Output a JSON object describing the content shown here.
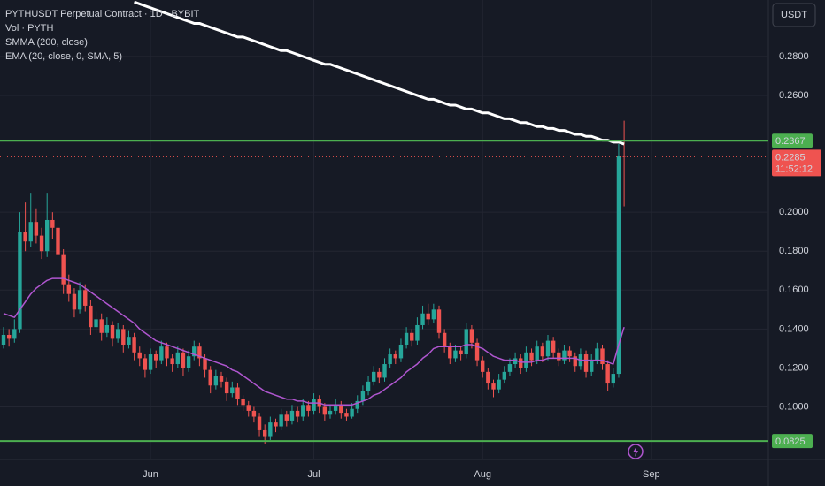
{
  "chart_data": {
    "type": "candlestick",
    "title": "PYTHUSDT Perpetual Contract · 1D · BYBIT",
    "volume_label": "Vol · PYTH",
    "currency": "USDT",
    "up_color": "#26a69a",
    "down_color": "#ef5350",
    "grid": true,
    "ylim": [
      0.073,
      0.309
    ],
    "yticks": [
      {
        "value": 0.28,
        "label": "0.2800"
      },
      {
        "value": 0.26,
        "label": "0.2600"
      },
      {
        "value": 0.2,
        "label": "0.2000"
      },
      {
        "value": 0.18,
        "label": "0.1800"
      },
      {
        "value": 0.16,
        "label": "0.1600"
      },
      {
        "value": 0.14,
        "label": "0.1400"
      },
      {
        "value": 0.12,
        "label": "0.1200"
      },
      {
        "value": 0.1,
        "label": "0.1000"
      }
    ],
    "categories": [
      null,
      null,
      null,
      null,
      null,
      null,
      null,
      null,
      null,
      null,
      null,
      null,
      null,
      null,
      null,
      null,
      null,
      null,
      null,
      null,
      null,
      null,
      null,
      null,
      null,
      null,
      null,
      "Jun",
      null,
      null,
      null,
      null,
      null,
      null,
      null,
      null,
      null,
      null,
      null,
      null,
      null,
      null,
      null,
      null,
      null,
      null,
      null,
      null,
      null,
      null,
      null,
      null,
      null,
      null,
      null,
      null,
      null,
      "Jul",
      null,
      null,
      null,
      null,
      null,
      null,
      null,
      null,
      null,
      null,
      null,
      null,
      null,
      null,
      null,
      null,
      null,
      null,
      null,
      null,
      null,
      null,
      null,
      null,
      null,
      null,
      null,
      null,
      null,
      null,
      "Aug",
      null,
      null,
      null,
      null,
      null,
      null,
      null,
      null,
      null,
      null,
      null,
      null,
      null,
      null,
      null,
      null,
      null,
      null,
      null,
      null,
      null,
      null,
      null,
      null,
      null,
      null,
      null,
      null,
      null,
      null,
      "Sep"
    ],
    "candles": [
      [
        0.132,
        0.141,
        0.13,
        0.137
      ],
      [
        0.137,
        0.14,
        0.131,
        0.135
      ],
      [
        0.135,
        0.145,
        0.133,
        0.14
      ],
      [
        0.14,
        0.2,
        0.138,
        0.19
      ],
      [
        0.19,
        0.205,
        0.18,
        0.185
      ],
      [
        0.185,
        0.21,
        0.182,
        0.195
      ],
      [
        0.195,
        0.202,
        0.184,
        0.188
      ],
      [
        0.188,
        0.192,
        0.176,
        0.18
      ],
      [
        0.18,
        0.21,
        0.177,
        0.196
      ],
      [
        0.196,
        0.2,
        0.186,
        0.192
      ],
      [
        0.192,
        0.196,
        0.174,
        0.178
      ],
      [
        0.178,
        0.181,
        0.158,
        0.163
      ],
      [
        0.163,
        0.168,
        0.154,
        0.158
      ],
      [
        0.158,
        0.161,
        0.146,
        0.15
      ],
      [
        0.15,
        0.164,
        0.148,
        0.16
      ],
      [
        0.16,
        0.163,
        0.149,
        0.152
      ],
      [
        0.152,
        0.155,
        0.137,
        0.141
      ],
      [
        0.141,
        0.149,
        0.138,
        0.145
      ],
      [
        0.145,
        0.148,
        0.134,
        0.138
      ],
      [
        0.138,
        0.146,
        0.136,
        0.142
      ],
      [
        0.142,
        0.144,
        0.131,
        0.135
      ],
      [
        0.135,
        0.143,
        0.133,
        0.14
      ],
      [
        0.14,
        0.142,
        0.128,
        0.132
      ],
      [
        0.132,
        0.139,
        0.13,
        0.136
      ],
      [
        0.136,
        0.138,
        0.124,
        0.128
      ],
      [
        0.128,
        0.131,
        0.121,
        0.125
      ],
      [
        0.125,
        0.127,
        0.115,
        0.119
      ],
      [
        0.119,
        0.13,
        0.117,
        0.127
      ],
      [
        0.127,
        0.129,
        0.12,
        0.124
      ],
      [
        0.124,
        0.134,
        0.122,
        0.131
      ],
      [
        0.131,
        0.133,
        0.121,
        0.125
      ],
      [
        0.125,
        0.127,
        0.118,
        0.122
      ],
      [
        0.122,
        0.131,
        0.12,
        0.128
      ],
      [
        0.128,
        0.13,
        0.116,
        0.12
      ],
      [
        0.12,
        0.129,
        0.118,
        0.126
      ],
      [
        0.126,
        0.134,
        0.124,
        0.131
      ],
      [
        0.131,
        0.133,
        0.121,
        0.125
      ],
      [
        0.125,
        0.127,
        0.115,
        0.119
      ],
      [
        0.119,
        0.121,
        0.107,
        0.111
      ],
      [
        0.111,
        0.119,
        0.109,
        0.116
      ],
      [
        0.116,
        0.118,
        0.11,
        0.113
      ],
      [
        0.113,
        0.115,
        0.103,
        0.107
      ],
      [
        0.107,
        0.113,
        0.105,
        0.11
      ],
      [
        0.11,
        0.112,
        0.101,
        0.104
      ],
      [
        0.104,
        0.106,
        0.098,
        0.101
      ],
      [
        0.101,
        0.103,
        0.095,
        0.098
      ],
      [
        0.098,
        0.1,
        0.092,
        0.095
      ],
      [
        0.095,
        0.097,
        0.085,
        0.088
      ],
      [
        0.088,
        0.091,
        0.081,
        0.085
      ],
      [
        0.085,
        0.095,
        0.083,
        0.092
      ],
      [
        0.092,
        0.094,
        0.087,
        0.09
      ],
      [
        0.09,
        0.099,
        0.088,
        0.096
      ],
      [
        0.096,
        0.098,
        0.09,
        0.093
      ],
      [
        0.093,
        0.101,
        0.091,
        0.098
      ],
      [
        0.098,
        0.1,
        0.092,
        0.095
      ],
      [
        0.095,
        0.104,
        0.093,
        0.101
      ],
      [
        0.101,
        0.103,
        0.095,
        0.098
      ],
      [
        0.098,
        0.107,
        0.096,
        0.104
      ],
      [
        0.104,
        0.106,
        0.097,
        0.1
      ],
      [
        0.1,
        0.102,
        0.093,
        0.096
      ],
      [
        0.096,
        0.101,
        0.094,
        0.098
      ],
      [
        0.098,
        0.104,
        0.096,
        0.101
      ],
      [
        0.101,
        0.103,
        0.094,
        0.097
      ],
      [
        0.097,
        0.099,
        0.093,
        0.095
      ],
      [
        0.095,
        0.102,
        0.094,
        0.099
      ],
      [
        0.099,
        0.106,
        0.097,
        0.103
      ],
      [
        0.103,
        0.111,
        0.101,
        0.108
      ],
      [
        0.108,
        0.116,
        0.106,
        0.113
      ],
      [
        0.113,
        0.121,
        0.111,
        0.118
      ],
      [
        0.118,
        0.12,
        0.112,
        0.115
      ],
      [
        0.115,
        0.125,
        0.113,
        0.122
      ],
      [
        0.122,
        0.13,
        0.12,
        0.127
      ],
      [
        0.127,
        0.129,
        0.122,
        0.125
      ],
      [
        0.125,
        0.135,
        0.123,
        0.132
      ],
      [
        0.132,
        0.141,
        0.13,
        0.138
      ],
      [
        0.138,
        0.14,
        0.131,
        0.134
      ],
      [
        0.134,
        0.146,
        0.132,
        0.142
      ],
      [
        0.142,
        0.152,
        0.14,
        0.148
      ],
      [
        0.148,
        0.153,
        0.142,
        0.145
      ],
      [
        0.145,
        0.153,
        0.143,
        0.15
      ],
      [
        0.15,
        0.152,
        0.135,
        0.138
      ],
      [
        0.138,
        0.14,
        0.128,
        0.131
      ],
      [
        0.131,
        0.133,
        0.122,
        0.125
      ],
      [
        0.125,
        0.132,
        0.123,
        0.129
      ],
      [
        0.129,
        0.131,
        0.124,
        0.127
      ],
      [
        0.127,
        0.143,
        0.125,
        0.14
      ],
      [
        0.14,
        0.142,
        0.13,
        0.133
      ],
      [
        0.133,
        0.135,
        0.121,
        0.124
      ],
      [
        0.124,
        0.126,
        0.115,
        0.118
      ],
      [
        0.118,
        0.12,
        0.109,
        0.112
      ],
      [
        0.112,
        0.114,
        0.105,
        0.109
      ],
      [
        0.109,
        0.117,
        0.107,
        0.114
      ],
      [
        0.114,
        0.121,
        0.112,
        0.118
      ],
      [
        0.118,
        0.125,
        0.116,
        0.122
      ],
      [
        0.122,
        0.128,
        0.12,
        0.125
      ],
      [
        0.125,
        0.127,
        0.117,
        0.12
      ],
      [
        0.12,
        0.131,
        0.118,
        0.128
      ],
      [
        0.128,
        0.13,
        0.121,
        0.124
      ],
      [
        0.124,
        0.134,
        0.122,
        0.131
      ],
      [
        0.131,
        0.133,
        0.123,
        0.126
      ],
      [
        0.126,
        0.137,
        0.124,
        0.134
      ],
      [
        0.134,
        0.136,
        0.125,
        0.128
      ],
      [
        0.128,
        0.13,
        0.121,
        0.124
      ],
      [
        0.124,
        0.132,
        0.122,
        0.129
      ],
      [
        0.129,
        0.131,
        0.123,
        0.126
      ],
      [
        0.126,
        0.128,
        0.118,
        0.121
      ],
      [
        0.121,
        0.13,
        0.119,
        0.127
      ],
      [
        0.127,
        0.129,
        0.115,
        0.118
      ],
      [
        0.118,
        0.127,
        0.116,
        0.124
      ],
      [
        0.124,
        0.133,
        0.122,
        0.13
      ],
      [
        0.13,
        0.132,
        0.119,
        0.122
      ],
      [
        0.122,
        0.124,
        0.108,
        0.112
      ],
      [
        0.112,
        0.12,
        0.11,
        0.117
      ],
      [
        0.117,
        0.235,
        0.115,
        0.229
      ],
      [
        0.229,
        0.247,
        0.203,
        0.2285
      ],
      null,
      null,
      null,
      null,
      null
    ],
    "series": [
      {
        "name": "SMMA (200, close)",
        "color": "#ffffff",
        "values": [
          null,
          null,
          null,
          null,
          null,
          null,
          null,
          null,
          null,
          null,
          null,
          null,
          null,
          null,
          null,
          null,
          null,
          null,
          null,
          null,
          null,
          null,
          null,
          null,
          0.308,
          0.307,
          0.306,
          0.305,
          0.304,
          0.303,
          0.302,
          0.301,
          0.3,
          0.299,
          0.298,
          0.297,
          0.297,
          0.296,
          0.295,
          0.294,
          0.293,
          0.292,
          0.291,
          0.29,
          0.29,
          0.289,
          0.288,
          0.287,
          0.286,
          0.285,
          0.284,
          0.283,
          0.283,
          0.282,
          0.281,
          0.28,
          0.279,
          0.278,
          0.277,
          0.276,
          0.276,
          0.275,
          0.274,
          0.273,
          0.272,
          0.271,
          0.27,
          0.269,
          0.268,
          0.267,
          0.266,
          0.265,
          0.264,
          0.263,
          0.262,
          0.261,
          0.26,
          0.259,
          0.258,
          0.258,
          0.257,
          0.256,
          0.255,
          0.255,
          0.254,
          0.253,
          0.253,
          0.252,
          0.251,
          0.251,
          0.25,
          0.249,
          0.248,
          0.248,
          0.247,
          0.246,
          0.246,
          0.245,
          0.244,
          0.244,
          0.243,
          0.243,
          0.242,
          0.242,
          0.241,
          0.24,
          0.24,
          0.239,
          0.239,
          0.238,
          0.237,
          0.237,
          0.236,
          0.236,
          0.235,
          null,
          null,
          null,
          null,
          null
        ]
      },
      {
        "name": "EMA (20, close, 0, SMA, 5)",
        "color": "#b056d0",
        "values": [
          0.148,
          0.147,
          0.146,
          0.15,
          0.154,
          0.158,
          0.161,
          0.163,
          0.165,
          0.166,
          0.166,
          0.166,
          0.165,
          0.164,
          0.163,
          0.161,
          0.159,
          0.157,
          0.155,
          0.153,
          0.151,
          0.149,
          0.147,
          0.145,
          0.143,
          0.14,
          0.138,
          0.136,
          0.134,
          0.133,
          0.132,
          0.131,
          0.13,
          0.129,
          0.128,
          0.127,
          0.126,
          0.125,
          0.124,
          0.123,
          0.122,
          0.121,
          0.119,
          0.118,
          0.116,
          0.114,
          0.112,
          0.11,
          0.108,
          0.107,
          0.106,
          0.105,
          0.104,
          0.104,
          0.103,
          0.103,
          0.102,
          0.102,
          0.102,
          0.101,
          0.101,
          0.101,
          0.101,
          0.101,
          0.101,
          0.102,
          0.103,
          0.104,
          0.106,
          0.107,
          0.109,
          0.111,
          0.113,
          0.115,
          0.118,
          0.12,
          0.122,
          0.125,
          0.127,
          0.13,
          0.131,
          0.131,
          0.131,
          0.131,
          0.131,
          0.132,
          0.132,
          0.131,
          0.13,
          0.128,
          0.126,
          0.125,
          0.124,
          0.124,
          0.124,
          0.123,
          0.123,
          0.123,
          0.124,
          0.124,
          0.125,
          0.125,
          0.125,
          0.125,
          0.125,
          0.125,
          0.124,
          0.124,
          0.124,
          0.124,
          0.124,
          0.123,
          0.122,
          0.132,
          0.141,
          null,
          null,
          null,
          null,
          null
        ]
      }
    ],
    "levels": [
      {
        "value": 0.2367,
        "color": "#4caf50"
      },
      {
        "value": 0.0825,
        "color": "#4caf50"
      }
    ],
    "last_price": 0.2285,
    "countdown": "11:52:12"
  }
}
